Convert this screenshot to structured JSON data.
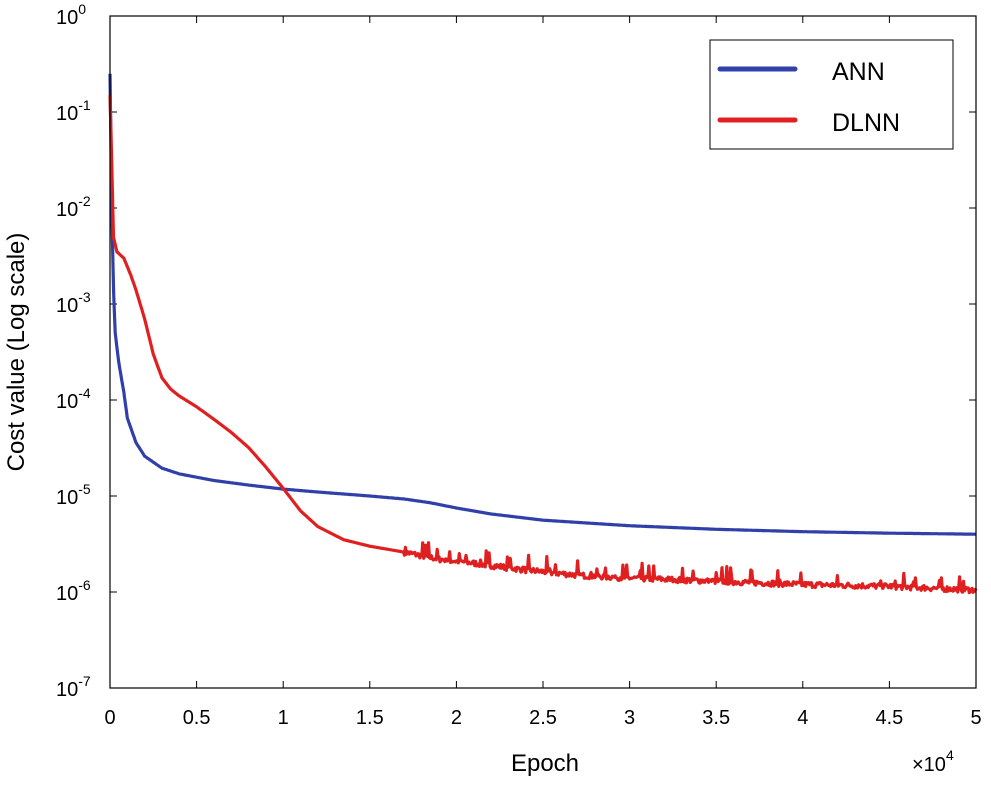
{
  "chart_data": {
    "type": "line",
    "title": "",
    "xlabel": "Epoch",
    "ylabel": "Cost value (Log scale)",
    "x_multiplier": {
      "base": "×10",
      "exp": "4"
    },
    "xlim": [
      0,
      5
    ],
    "ylim_log10": [
      -7,
      0
    ],
    "x_ticks": [
      {
        "value": 0,
        "label": "0"
      },
      {
        "value": 0.5,
        "label": "0.5"
      },
      {
        "value": 1,
        "label": "1"
      },
      {
        "value": 1.5,
        "label": "1.5"
      },
      {
        "value": 2,
        "label": "2"
      },
      {
        "value": 2.5,
        "label": "2.5"
      },
      {
        "value": 3,
        "label": "3"
      },
      {
        "value": 3.5,
        "label": "3.5"
      },
      {
        "value": 4,
        "label": "4"
      },
      {
        "value": 4.5,
        "label": "4.5"
      },
      {
        "value": 5,
        "label": "5"
      }
    ],
    "y_ticks": [
      {
        "exp": 0,
        "base": "10",
        "sup": "0"
      },
      {
        "exp": -1,
        "base": "10",
        "sup": "-1"
      },
      {
        "exp": -2,
        "base": "10",
        "sup": "-2"
      },
      {
        "exp": -3,
        "base": "10",
        "sup": "-3"
      },
      {
        "exp": -4,
        "base": "10",
        "sup": "-4"
      },
      {
        "exp": -5,
        "base": "10",
        "sup": "-5"
      },
      {
        "exp": -6,
        "base": "10",
        "sup": "-6"
      },
      {
        "exp": -7,
        "base": "10",
        "sup": "-7"
      }
    ],
    "legend_position": "top-right",
    "series": [
      {
        "name": "ANN",
        "color": "#3040a8",
        "x": [
          0,
          0.01,
          0.02,
          0.03,
          0.05,
          0.08,
          0.1,
          0.15,
          0.2,
          0.3,
          0.4,
          0.6,
          0.8,
          1.0,
          1.2,
          1.5,
          1.7,
          1.85,
          2.0,
          2.2,
          2.5,
          3.0,
          3.5,
          4.0,
          4.5,
          5.0
        ],
        "y": [
          0.25,
          0.01,
          0.0015,
          0.0005,
          0.00025,
          0.00012,
          6.5e-05,
          3.6e-05,
          2.6e-05,
          1.95e-05,
          1.7e-05,
          1.45e-05,
          1.3e-05,
          1.18e-05,
          1.1e-05,
          1e-05,
          9.3e-06,
          8.5e-06,
          7.5e-06,
          6.5e-06,
          5.6e-06,
          4.9e-06,
          4.5e-06,
          4.25e-06,
          4.1e-06,
          4e-06
        ]
      },
      {
        "name": "DLNN",
        "color": "#e02020",
        "noisy_from_x": 1.7,
        "x": [
          0,
          0.01,
          0.02,
          0.04,
          0.08,
          0.12,
          0.15,
          0.2,
          0.25,
          0.3,
          0.35,
          0.4,
          0.5,
          0.6,
          0.7,
          0.8,
          0.9,
          1.0,
          1.1,
          1.2,
          1.35,
          1.5,
          1.7,
          1.9,
          2.1,
          2.4,
          2.7,
          3.0,
          3.5,
          4.0,
          4.5,
          5.0
        ],
        "y": [
          0.15,
          0.03,
          0.005,
          0.0035,
          0.003,
          0.002,
          0.0014,
          0.0007,
          0.0003,
          0.00017,
          0.00013,
          0.00011,
          8.5e-05,
          6.3e-05,
          4.6e-05,
          3.2e-05,
          2e-05,
          1.2e-05,
          7e-06,
          4.8e-06,
          3.5e-06,
          3e-06,
          2.6e-06,
          2.2e-06,
          2e-06,
          1.7e-06,
          1.5e-06,
          1.4e-06,
          1.3e-06,
          1.2e-06,
          1.15e-06,
          1.05e-06
        ]
      }
    ]
  }
}
